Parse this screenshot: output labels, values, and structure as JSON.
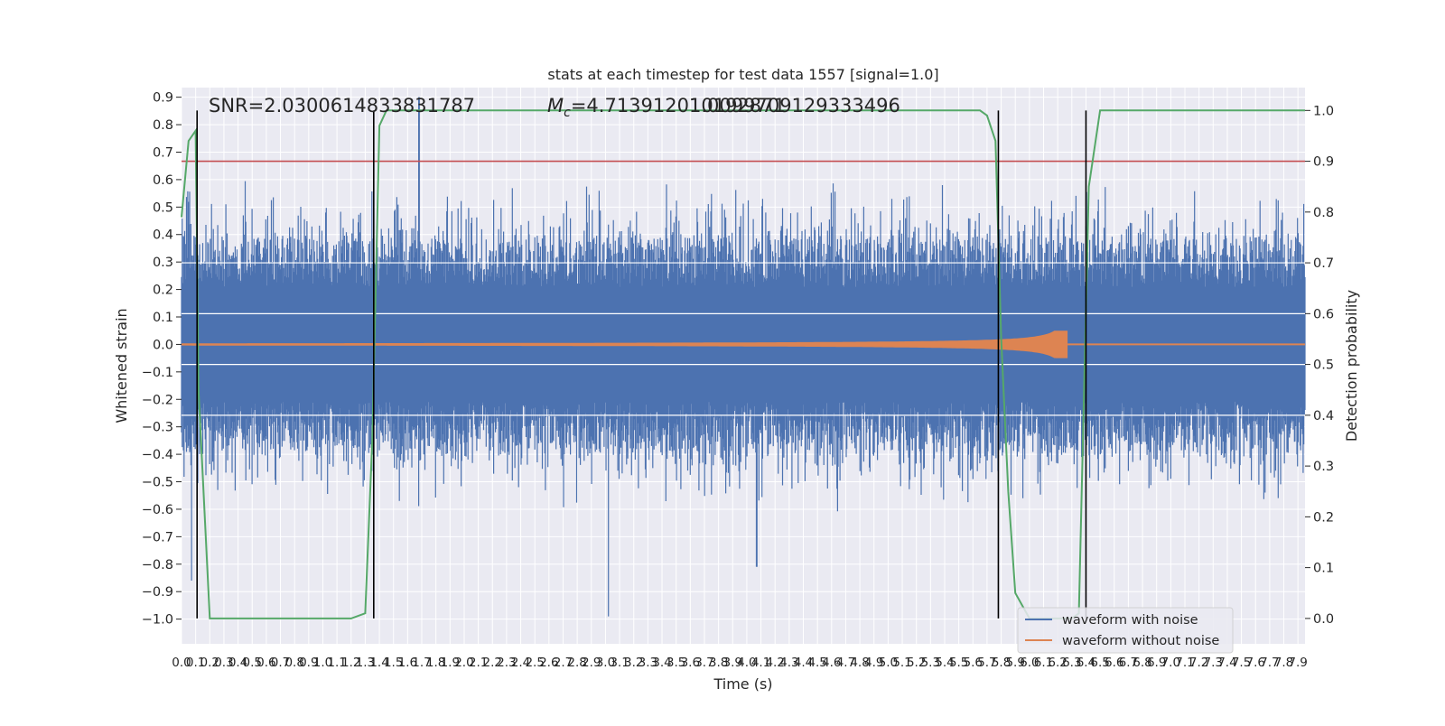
{
  "chart_data": {
    "type": "line",
    "title": "stats at each timestep for test data 1557 [signal=1.0]",
    "xlabel": "Time (s)",
    "ylabel": "Whitened strain",
    "ylabel_right": "Detection probability",
    "xlim": [
      0.0,
      7.95
    ],
    "ylim": [
      -1.09,
      0.935
    ],
    "ylim_right": [
      -0.05,
      1.045
    ],
    "yticks": [
      -1.0,
      -0.9,
      -0.8,
      -0.7,
      -0.6,
      -0.5,
      -0.4,
      -0.3,
      -0.2,
      -0.1,
      0.0,
      0.1,
      0.2,
      0.3,
      0.4,
      0.5,
      0.6,
      0.7,
      0.8,
      0.9
    ],
    "ytick_labels": [
      "−1.0",
      "−0.9",
      "−0.8",
      "−0.7",
      "−0.6",
      "−0.5",
      "−0.4",
      "−0.3",
      "−0.2",
      "−0.1",
      "0.0",
      "0.1",
      "0.2",
      "0.3",
      "0.4",
      "0.5",
      "0.6",
      "0.7",
      "0.8",
      "0.9"
    ],
    "yticks_right": [
      0.0,
      0.1,
      0.2,
      0.3,
      0.4,
      0.5,
      0.6,
      0.7,
      0.8,
      0.9,
      1.0
    ],
    "ytick_labels_right": [
      "0.0",
      "0.1",
      "0.2",
      "0.3",
      "0.4",
      "0.5",
      "0.6",
      "0.7",
      "0.8",
      "0.9",
      "1.0"
    ],
    "x_tick_step": 0.1,
    "x_tick_count": 80,
    "annotations": [
      {
        "text": "SNR=2.0300614833831787"
      },
      {
        "text": "Mc=4.713912010192871"
      },
      {
        "text": "1.0099709129333496"
      }
    ],
    "threshold": {
      "value": 0.9,
      "axis": "right",
      "color": "#c44e52"
    },
    "vertical_lines": [
      0.11,
      1.36,
      5.78,
      6.4
    ],
    "series": [
      {
        "name": "waveform with noise",
        "color": "#4c72b0",
        "kind": "noise",
        "typical_amplitude": 0.35,
        "peaks": [
          {
            "x": 1.68,
            "y": 0.9
          },
          {
            "x": 3.02,
            "y": -0.99
          },
          {
            "x": 0.07,
            "y": -0.86
          },
          {
            "x": 4.07,
            "y": -0.81
          }
        ]
      },
      {
        "name": "waveform without noise",
        "color": "#dd8452",
        "kind": "chirp",
        "merger_time": 6.27,
        "peak_amplitude": 0.05
      },
      {
        "name": "",
        "color": "#55a868",
        "axis": "right",
        "x": [
          0.0,
          0.05,
          0.1,
          0.12,
          0.2,
          0.25,
          0.3,
          0.5,
          1.0,
          1.2,
          1.3,
          1.35,
          1.4,
          1.45,
          1.5,
          5.5,
          5.65,
          5.7,
          5.76,
          5.8,
          5.85,
          5.9,
          6.0,
          6.1,
          6.2,
          6.3,
          6.35,
          6.42,
          6.5,
          7.95
        ],
        "y": [
          0.79,
          0.94,
          0.96,
          0.45,
          0.0,
          0.0,
          0.0,
          0.0,
          0.0,
          0.0,
          0.01,
          0.35,
          0.97,
          1.0,
          1.0,
          1.0,
          1.0,
          0.99,
          0.94,
          0.55,
          0.25,
          0.05,
          0.0,
          0.0,
          0.0,
          0.0,
          0.01,
          0.85,
          1.0,
          1.0
        ]
      }
    ],
    "legend_position": "lower right",
    "grid": true
  }
}
